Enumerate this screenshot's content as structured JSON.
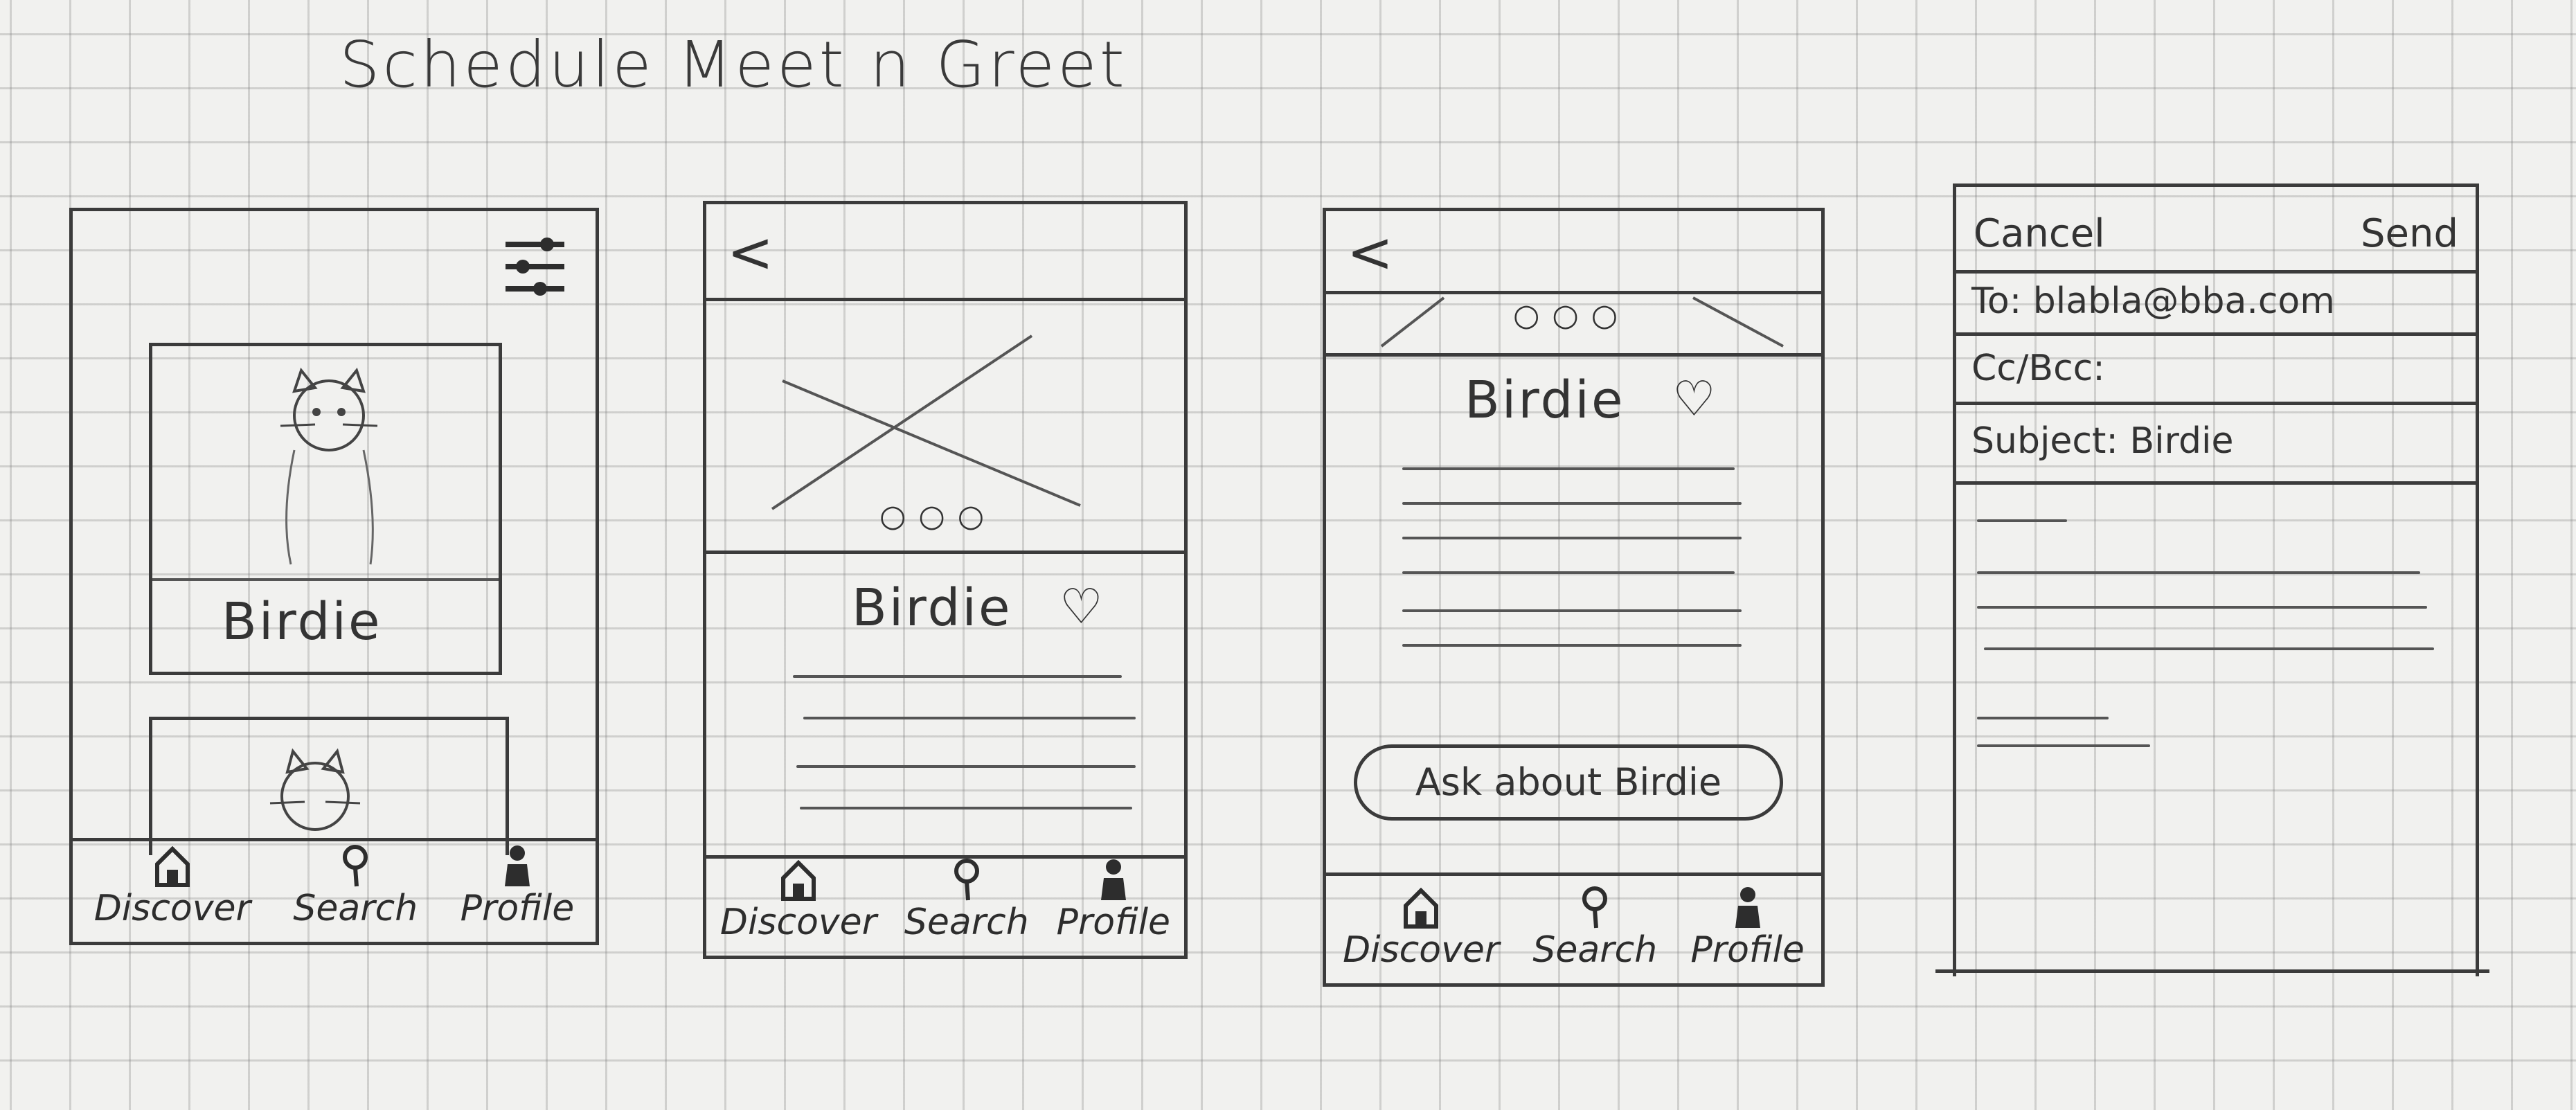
{
  "title": "Schedule Meet n Greet",
  "pet": {
    "name": "Birdie"
  },
  "nav": {
    "discover": "Discover",
    "search": "Search",
    "profile": "Profile"
  },
  "detail": {
    "back": "<",
    "dots": "○○○",
    "heart": "♡"
  },
  "cta": {
    "ask_label": "Ask about Birdie"
  },
  "email": {
    "cancel": "Cancel",
    "send": "Send",
    "to": "To: blabla@bba.com",
    "cc": "Cc/Bcc:",
    "subject": "Subject: Birdie"
  }
}
